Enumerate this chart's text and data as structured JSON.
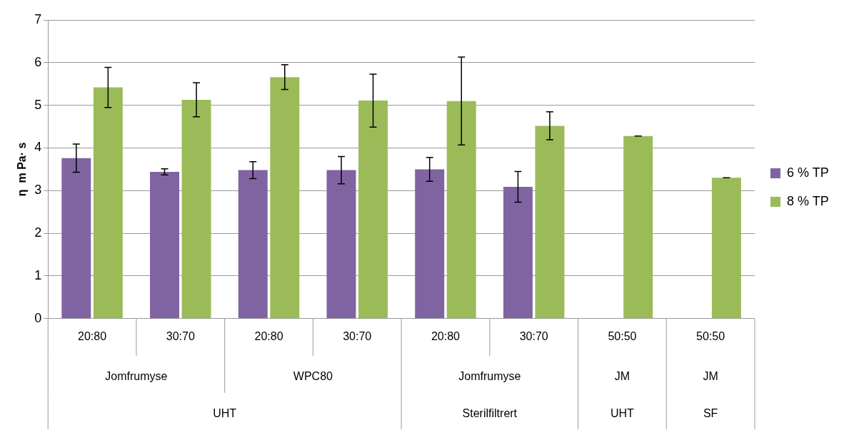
{
  "chart_data": {
    "type": "bar",
    "ylabel": "η  m Pa· s",
    "categories": [
      "20:80",
      "30:70",
      "20:80",
      "30:70",
      "20:80",
      "30:70",
      "50:50",
      "50:50"
    ],
    "series": [
      {
        "name": "6 % TP",
        "color": "#8064a2",
        "values": [
          3.76,
          3.44,
          3.48,
          3.48,
          3.5,
          3.09,
          null,
          null
        ],
        "errors": [
          0.33,
          0.07,
          0.2,
          0.32,
          0.28,
          0.36,
          null,
          null
        ]
      },
      {
        "name": "8 % TP",
        "color": "#9bbb59",
        "values": [
          5.42,
          5.13,
          5.66,
          5.11,
          5.1,
          4.52,
          4.28,
          3.3
        ],
        "errors": [
          0.47,
          0.4,
          0.29,
          0.62,
          1.03,
          0.33,
          0,
          0
        ]
      }
    ],
    "annotations": [
      "Jomfrumyse",
      "WPC80",
      "Jomfrumyse",
      "JM",
      "JM",
      "UHT",
      "Sterilfiltrert",
      "UHT",
      "SF"
    ],
    "ylim": [
      0,
      7
    ],
    "yticks": [
      0,
      1,
      2,
      3,
      4,
      5,
      6,
      7
    ],
    "grid": "y",
    "legend": "right"
  }
}
